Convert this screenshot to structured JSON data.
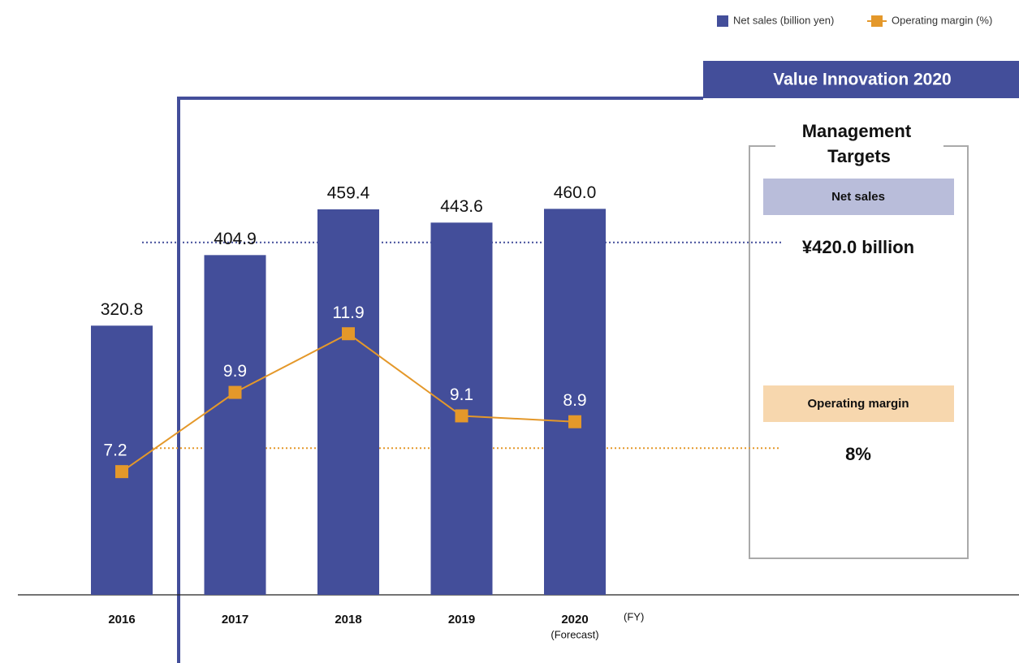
{
  "chart_data": {
    "type": "bar",
    "categories": [
      "2016",
      "2017",
      "2018",
      "2019",
      "2020"
    ],
    "category_notes": [
      null,
      null,
      null,
      null,
      "(Forecast)"
    ],
    "x_unit": "(FY)",
    "series": [
      {
        "name": "Net sales (billion yen)",
        "color": "#434e9a",
        "values": [
          320.8,
          404.9,
          459.4,
          443.6,
          460.0
        ],
        "value_labels": [
          "320.8",
          "404.9",
          "459.4",
          "443.6",
          "460.0"
        ]
      },
      {
        "name": "Operating margin (%)",
        "color": "#e4982a",
        "type": "line",
        "axis": "y2",
        "values": [
          7.2,
          9.9,
          11.9,
          9.1,
          8.9
        ]
      }
    ],
    "ylim": [
      0,
      500
    ],
    "y2lim": [
      3,
      17.3
    ],
    "period_title": "Value Innovation 2020",
    "targets": {
      "title": "Management Targets",
      "net_sales": {
        "label": "Net sales",
        "value": 420,
        "value_label": "¥420.0 billion"
      },
      "operating_margin": {
        "label": "Operating margin",
        "value": 8,
        "value_label": "8%"
      }
    },
    "legend": "top-right"
  }
}
